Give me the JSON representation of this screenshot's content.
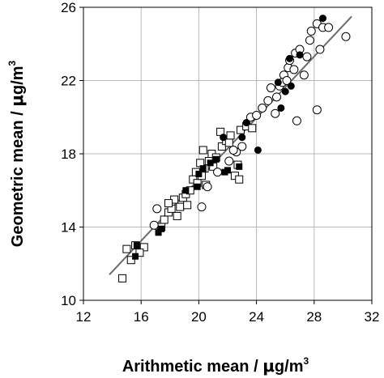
{
  "chart_data": {
    "type": "scatter",
    "xlabel_parts": [
      "Arithmetic mean / ",
      "μ",
      "g/m",
      "3"
    ],
    "ylabel_parts": [
      "Geometric mean / ",
      "μ",
      "g/m",
      "3"
    ],
    "xlim": [
      12,
      32
    ],
    "ylim": [
      10,
      26
    ],
    "xticks": [
      12,
      16,
      20,
      24,
      28,
      32
    ],
    "yticks": [
      10,
      14,
      18,
      22,
      26
    ],
    "grid": true,
    "fit_line": {
      "x": [
        13.8,
        30.6
      ],
      "y": [
        11.4,
        25.5
      ]
    },
    "series": [
      {
        "marker": "open-square",
        "points": [
          [
            14.7,
            11.2
          ],
          [
            15.0,
            12.8
          ],
          [
            15.3,
            12.2
          ],
          [
            15.6,
            13.0
          ],
          [
            16.2,
            12.9
          ],
          [
            15.9,
            12.6
          ],
          [
            17.4,
            14.0
          ],
          [
            17.6,
            14.4
          ],
          [
            17.9,
            14.8
          ],
          [
            18.1,
            15.0
          ],
          [
            18.3,
            15.5
          ],
          [
            17.9,
            15.3
          ],
          [
            18.7,
            15.1
          ],
          [
            18.5,
            14.6
          ],
          [
            18.9,
            15.6
          ],
          [
            19.1,
            15.8
          ],
          [
            19.4,
            16.0
          ],
          [
            19.6,
            16.6
          ],
          [
            19.9,
            16.4
          ],
          [
            19.8,
            17.0
          ],
          [
            20.2,
            16.8
          ],
          [
            20.4,
            17.2
          ],
          [
            20.1,
            17.5
          ],
          [
            20.7,
            17.6
          ],
          [
            20.9,
            18.0
          ],
          [
            21.2,
            17.8
          ],
          [
            21.0,
            17.3
          ],
          [
            20.5,
            16.3
          ],
          [
            20.3,
            18.2
          ],
          [
            21.6,
            18.4
          ],
          [
            21.9,
            18.7
          ],
          [
            22.2,
            19.0
          ],
          [
            21.5,
            19.2
          ],
          [
            22.7,
            17.4
          ],
          [
            22.5,
            16.8
          ],
          [
            22.9,
            19.3
          ],
          [
            23.3,
            19.5
          ],
          [
            23.7,
            19.4
          ],
          [
            22.1,
            18.6
          ],
          [
            22.8,
            16.6
          ],
          [
            19.2,
            15.2
          ]
        ]
      },
      {
        "marker": "filled-square",
        "points": [
          [
            15.6,
            12.4
          ],
          [
            15.7,
            13.0
          ],
          [
            17.2,
            13.7
          ],
          [
            17.4,
            13.9
          ],
          [
            19.1,
            16.0
          ],
          [
            19.9,
            16.2
          ],
          [
            20.0,
            16.9
          ],
          [
            20.3,
            17.2
          ],
          [
            20.8,
            17.5
          ],
          [
            21.2,
            17.7
          ],
          [
            21.8,
            17.0
          ],
          [
            22.0,
            17.1
          ],
          [
            22.8,
            17.3
          ]
        ]
      },
      {
        "marker": "open-circle",
        "points": [
          [
            16.9,
            14.1
          ],
          [
            17.1,
            15.0
          ],
          [
            20.2,
            15.1
          ],
          [
            20.6,
            16.2
          ],
          [
            21.3,
            17.0
          ],
          [
            22.1,
            17.6
          ],
          [
            22.6,
            18.1
          ],
          [
            23.0,
            18.4
          ],
          [
            22.4,
            18.2
          ],
          [
            23.6,
            20.0
          ],
          [
            24.0,
            20.1
          ],
          [
            24.4,
            20.5
          ],
          [
            24.8,
            20.9
          ],
          [
            25.0,
            21.6
          ],
          [
            25.4,
            21.1
          ],
          [
            25.6,
            21.7
          ],
          [
            25.9,
            22.3
          ],
          [
            25.8,
            21.9
          ],
          [
            26.1,
            22.0
          ],
          [
            26.2,
            22.7
          ],
          [
            26.6,
            22.6
          ],
          [
            26.7,
            23.5
          ],
          [
            27.0,
            23.7
          ],
          [
            27.3,
            22.3
          ],
          [
            27.5,
            23.3
          ],
          [
            27.8,
            24.7
          ],
          [
            27.7,
            24.2
          ],
          [
            28.2,
            25.1
          ],
          [
            28.4,
            23.7
          ],
          [
            28.6,
            24.9
          ],
          [
            29.0,
            24.9
          ],
          [
            30.2,
            24.4
          ],
          [
            28.2,
            20.4
          ],
          [
            26.8,
            19.8
          ],
          [
            25.3,
            20.2
          ],
          [
            26.3,
            23.1
          ]
        ]
      },
      {
        "marker": "filled-circle",
        "points": [
          [
            21.7,
            18.9
          ],
          [
            23.0,
            18.9
          ],
          [
            23.3,
            19.7
          ],
          [
            24.1,
            18.2
          ],
          [
            25.7,
            20.5
          ],
          [
            25.5,
            21.9
          ],
          [
            26.0,
            21.4
          ],
          [
            26.4,
            21.7
          ],
          [
            26.3,
            23.2
          ],
          [
            27.0,
            23.4
          ],
          [
            28.6,
            25.4
          ]
        ]
      }
    ]
  }
}
